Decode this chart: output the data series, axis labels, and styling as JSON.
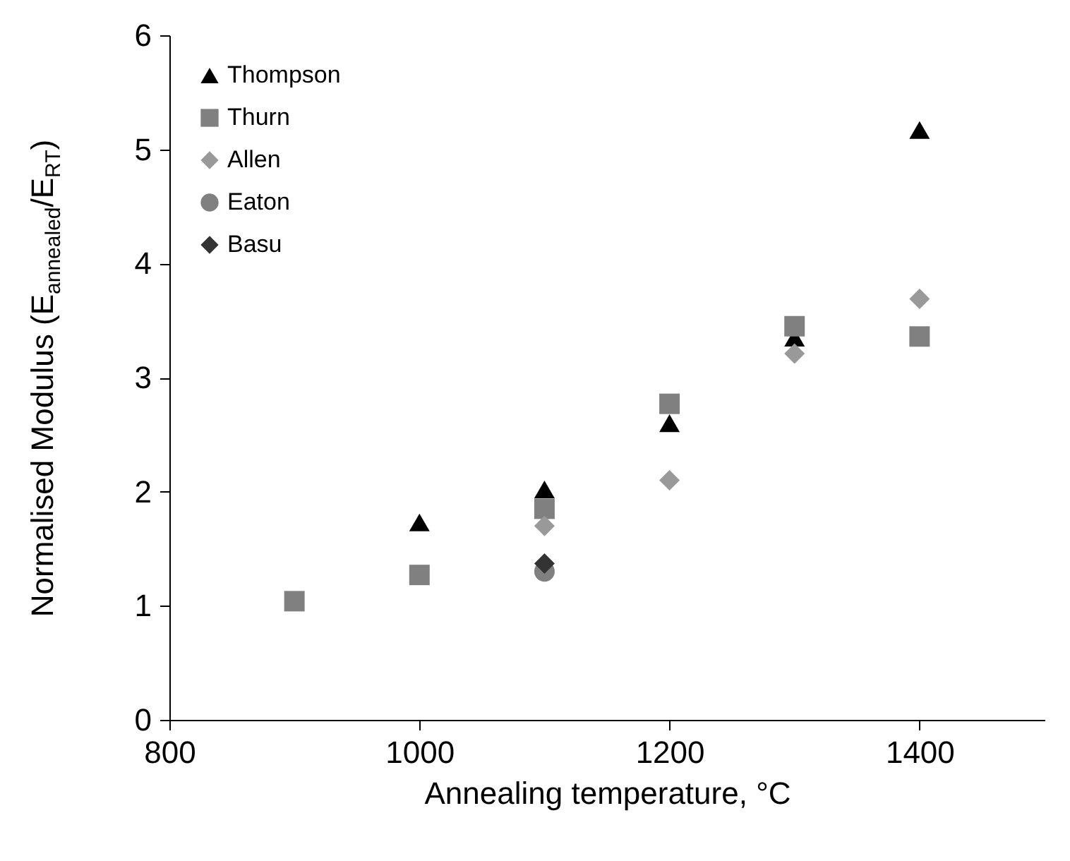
{
  "chart_data": {
    "type": "scatter",
    "xlabel": "Annealing temperature, °C",
    "ylabel": "Normalised Modulus (E$_{annealed}$/E$_{RT}$)",
    "xlim": [
      800,
      1500
    ],
    "xticks": [
      800,
      1000,
      1200,
      1400
    ],
    "ylim": [
      0,
      6
    ],
    "yticks": [
      0,
      1,
      2,
      3,
      4,
      5,
      6
    ],
    "grid": false,
    "legend": "top left",
    "series": [
      {
        "name": "Thompson",
        "color": "#000000",
        "marker": "triangle",
        "x": [
          1000,
          1100,
          1200,
          1300,
          1400
        ],
        "values": [
          1.73,
          2.02,
          2.6,
          3.35,
          5.17
        ]
      },
      {
        "name": "Thurn",
        "color": "#808080",
        "marker": "square",
        "x": [
          900,
          1000,
          1100,
          1200,
          1300,
          1400
        ],
        "values": [
          1.04,
          1.27,
          1.85,
          2.77,
          3.45,
          3.36
        ]
      },
      {
        "name": "Allen",
        "color": "#999999",
        "marker": "diamond",
        "x": [
          1100,
          1200,
          1300,
          1400
        ],
        "values": [
          1.7,
          2.1,
          3.21,
          3.69
        ]
      },
      {
        "name": "Eaton",
        "color": "#808080",
        "marker": "circle",
        "x": [
          1100
        ],
        "values": [
          1.3
        ]
      },
      {
        "name": "Basu",
        "color": "#333333",
        "marker": "diamond",
        "x": [
          1100
        ],
        "values": [
          1.37
        ]
      }
    ]
  }
}
